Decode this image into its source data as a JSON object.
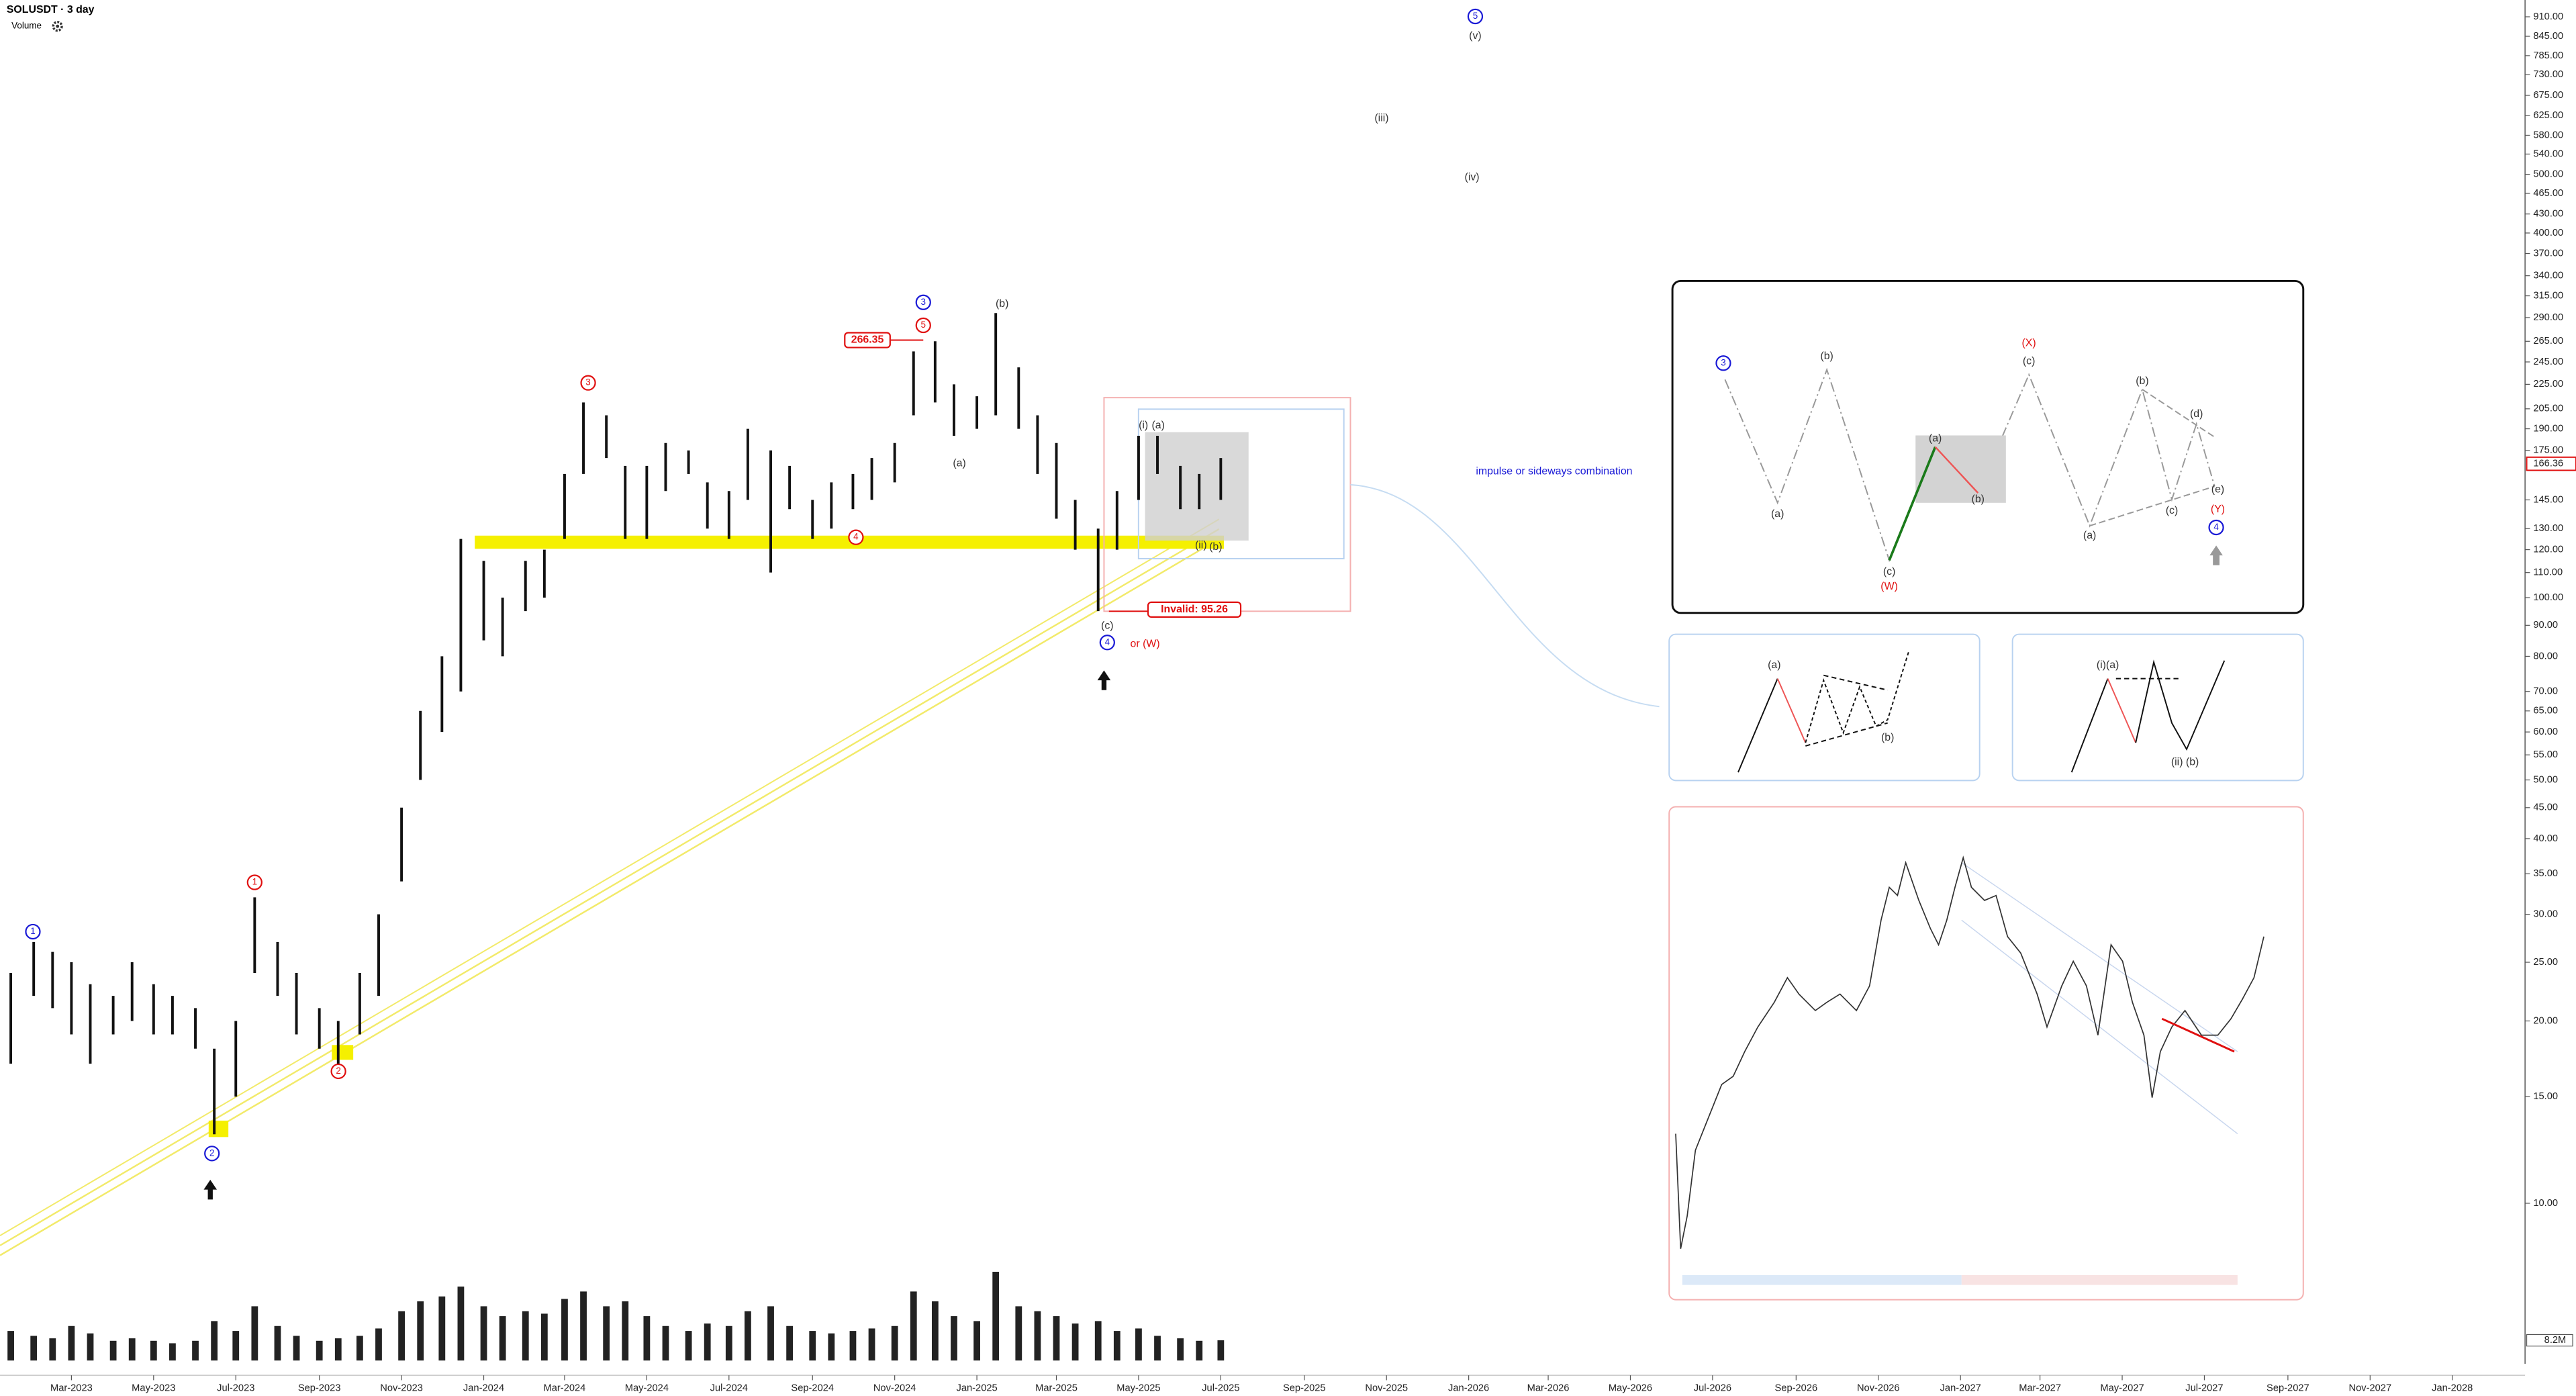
{
  "chart_data": {
    "type": "ohlc",
    "title": "SOLUSDT · 3 day",
    "volume_title": "Volume",
    "log_scale": true,
    "color": "#111111",
    "volume_color": "#222222",
    "x": [
      "2023-01-15",
      "2023-02-01",
      "2023-02-15",
      "2023-03-01",
      "2023-03-15",
      "2023-04-01",
      "2023-04-15",
      "2023-05-01",
      "2023-05-15",
      "2023-06-01",
      "2023-06-15",
      "2023-07-01",
      "2023-07-15",
      "2023-08-01",
      "2023-08-15",
      "2023-09-01",
      "2023-09-15",
      "2023-10-01",
      "2023-10-15",
      "2023-11-01",
      "2023-11-15",
      "2023-12-01",
      "2023-12-15",
      "2024-01-01",
      "2024-01-15",
      "2024-02-01",
      "2024-02-15",
      "2024-03-01",
      "2024-03-15",
      "2024-04-01",
      "2024-04-15",
      "2024-05-01",
      "2024-05-15",
      "2024-06-01",
      "2024-06-15",
      "2024-07-01",
      "2024-07-15",
      "2024-08-01",
      "2024-08-15",
      "2024-09-01",
      "2024-09-15",
      "2024-10-01",
      "2024-10-15",
      "2024-11-01",
      "2024-11-15",
      "2024-12-01",
      "2024-12-15",
      "2025-01-01",
      "2025-01-15",
      "2025-02-01",
      "2025-02-15",
      "2025-03-01",
      "2025-03-15",
      "2025-04-01",
      "2025-04-15",
      "2025-05-01",
      "2025-05-15",
      "2025-06-01",
      "2025-06-15",
      "2025-07-01"
    ],
    "high": [
      24,
      27,
      26,
      25,
      23,
      22,
      25,
      23,
      22,
      21,
      18,
      20,
      32,
      27,
      24,
      21,
      20,
      24,
      30,
      45,
      65,
      80,
      125,
      115,
      100,
      115,
      120,
      160,
      210,
      200,
      165,
      165,
      180,
      175,
      155,
      150,
      190,
      175,
      165,
      145,
      155,
      160,
      170,
      180,
      255,
      265,
      225,
      215,
      295,
      240,
      200,
      180,
      145,
      130,
      150,
      185,
      185,
      165,
      160,
      170
    ],
    "low": [
      17,
      22,
      21,
      19,
      17,
      19,
      20,
      19,
      19,
      18,
      13,
      15,
      24,
      22,
      19,
      18,
      17,
      19,
      22,
      34,
      50,
      60,
      70,
      85,
      80,
      95,
      100,
      125,
      160,
      170,
      125,
      125,
      150,
      160,
      130,
      125,
      145,
      110,
      140,
      125,
      130,
      140,
      145,
      155,
      200,
      210,
      185,
      190,
      200,
      190,
      160,
      135,
      120,
      95,
      120,
      145,
      160,
      140,
      140,
      145
    ],
    "volume": [
      12,
      10,
      9,
      14,
      11,
      8,
      9,
      8,
      7,
      8,
      16,
      12,
      22,
      14,
      10,
      8,
      9,
      10,
      13,
      20,
      24,
      26,
      30,
      22,
      18,
      20,
      19,
      25,
      28,
      22,
      24,
      18,
      14,
      12,
      15,
      14,
      20,
      22,
      14,
      12,
      11,
      12,
      13,
      14,
      28,
      24,
      18,
      16,
      36,
      22,
      20,
      18,
      15,
      16,
      12,
      13,
      10,
      9,
      8,
      8.2
    ],
    "vlim": [
      0,
      40
    ],
    "vticks": [
      {
        "value": 8.2,
        "label": "8.2M"
      }
    ],
    "last_price": {
      "value": 166.36,
      "label": "166.36"
    },
    "xlim": [
      "2023-01-07",
      "2028-02-24"
    ],
    "ylim": [
      5.5,
      970
    ],
    "xticks": [
      {
        "value": "2023-03-01",
        "label": "Mar-2023"
      },
      {
        "value": "2023-05-01",
        "label": "May-2023"
      },
      {
        "value": "2023-07-01",
        "label": "Jul-2023"
      },
      {
        "value": "2023-09-01",
        "label": "Sep-2023"
      },
      {
        "value": "2023-11-01",
        "label": "Nov-2023"
      },
      {
        "value": "2024-01-01",
        "label": "Jan-2024"
      },
      {
        "value": "2024-03-01",
        "label": "Mar-2024"
      },
      {
        "value": "2024-05-01",
        "label": "May-2024"
      },
      {
        "value": "2024-07-01",
        "label": "Jul-2024"
      },
      {
        "value": "2024-09-01",
        "label": "Sep-2024"
      },
      {
        "value": "2024-11-01",
        "label": "Nov-2024"
      },
      {
        "value": "2025-01-01",
        "label": "Jan-2025"
      },
      {
        "value": "2025-03-01",
        "label": "Mar-2025"
      },
      {
        "value": "2025-05-01",
        "label": "May-2025"
      },
      {
        "value": "2025-07-01",
        "label": "Jul-2025"
      },
      {
        "value": "2025-09-01",
        "label": "Sep-2025"
      },
      {
        "value": "2025-11-01",
        "label": "Nov-2025"
      },
      {
        "value": "2026-01-01",
        "label": "Jan-2026"
      },
      {
        "value": "2026-03-01",
        "label": "Mar-2026"
      },
      {
        "value": "2026-05-01",
        "label": "May-2026"
      },
      {
        "value": "2026-07-01",
        "label": "Jul-2026"
      },
      {
        "value": "2026-09-01",
        "label": "Sep-2026"
      },
      {
        "value": "2026-11-01",
        "label": "Nov-2026"
      },
      {
        "value": "2027-01-01",
        "label": "Jan-2027"
      },
      {
        "value": "2027-03-01",
        "label": "Mar-2027"
      },
      {
        "value": "2027-05-01",
        "label": "May-2027"
      },
      {
        "value": "2027-07-01",
        "label": "Jul-2027"
      },
      {
        "value": "2027-09-01",
        "label": "Sep-2027"
      },
      {
        "value": "2027-11-01",
        "label": "Nov-2027"
      },
      {
        "value": "2028-01-01",
        "label": "Jan-2028"
      }
    ],
    "yticks": [
      {
        "value": 910,
        "label": "910.00"
      },
      {
        "value": 845,
        "label": "845.00"
      },
      {
        "value": 785,
        "label": "785.00"
      },
      {
        "value": 730,
        "label": "730.00"
      },
      {
        "value": 675,
        "label": "675.00"
      },
      {
        "value": 625,
        "label": "625.00"
      },
      {
        "value": 580,
        "label": "580.00"
      },
      {
        "value": 540,
        "label": "540.00"
      },
      {
        "value": 500,
        "label": "500.00"
      },
      {
        "value": 465,
        "label": "465.00"
      },
      {
        "value": 430,
        "label": "430.00"
      },
      {
        "value": 400,
        "label": "400.00"
      },
      {
        "value": 370,
        "label": "370.00"
      },
      {
        "value": 340,
        "label": "340.00"
      },
      {
        "value": 315,
        "label": "315.00"
      },
      {
        "value": 290,
        "label": "290.00"
      },
      {
        "value": 265,
        "label": "265.00"
      },
      {
        "value": 245,
        "label": "245.00"
      },
      {
        "value": 225,
        "label": "225.00"
      },
      {
        "value": 205,
        "label": "205.00"
      },
      {
        "value": 190,
        "label": "190.00"
      },
      {
        "value": 175,
        "label": "175.00"
      },
      {
        "value": 145,
        "label": "145.00"
      },
      {
        "value": 130,
        "label": "130.00"
      },
      {
        "value": 120,
        "label": "120.00"
      },
      {
        "value": 110,
        "label": "110.00"
      },
      {
        "value": 100,
        "label": "100.00"
      },
      {
        "value": 90,
        "label": "90.00"
      },
      {
        "value": 80,
        "label": "80.00"
      },
      {
        "value": 70,
        "label": "70.00"
      },
      {
        "value": 65,
        "label": "65.00"
      },
      {
        "value": 60,
        "label": "60.00"
      },
      {
        "value": 55,
        "label": "55.00"
      },
      {
        "value": 50,
        "label": "50.00"
      },
      {
        "value": 45,
        "label": "45.00"
      },
      {
        "value": 40,
        "label": "40.00"
      },
      {
        "value": 35,
        "label": "35.00"
      },
      {
        "value": 30,
        "label": "30.00"
      },
      {
        "value": 25,
        "label": "25.00"
      },
      {
        "value": 20,
        "label": "20.00"
      },
      {
        "value": 15,
        "label": "15.00"
      },
      {
        "value": 10,
        "label": "10.00"
      }
    ],
    "annotations": [
      {
        "text": "1",
        "color": "#1a1ad6",
        "circled": true
      },
      {
        "text": "1",
        "color": "#e01010",
        "circled": true
      },
      {
        "text": "2",
        "color": "#1a1ad6",
        "circled": true
      },
      {
        "text": "2",
        "color": "#e01010",
        "circled": true
      },
      {
        "text": "3",
        "color": "#e01010",
        "circled": true
      },
      {
        "text": "4",
        "color": "#e01010",
        "circled": true
      },
      {
        "text": "3",
        "color": "#1a1ad6",
        "circled": true
      },
      {
        "text": "5",
        "color": "#e01010",
        "circled": true
      },
      {
        "text": "(b)",
        "color": "#333333"
      },
      {
        "text": "(a)",
        "color": "#333333"
      },
      {
        "text": "266.35",
        "color": "#e01010",
        "boxed": true
      },
      {
        "text": "(i)",
        "color": "#333333"
      },
      {
        "text": "(a)",
        "color": "#333333"
      },
      {
        "text": "(ii)",
        "color": "#333333"
      },
      {
        "text": "(b)",
        "color": "#333333"
      },
      {
        "text": "(c)",
        "color": "#333333"
      },
      {
        "text": "4",
        "color": "#1a1ad6",
        "circled": true
      },
      {
        "text": "or (W)",
        "color": "#e01010"
      },
      {
        "text": "Invalid: 95.26",
        "color": "#e01010",
        "boxed": true
      },
      {
        "text": "5",
        "color": "#1a1ad6",
        "circled": true
      },
      {
        "text": "(v)",
        "color": "#333333"
      },
      {
        "text": "(iii)",
        "color": "#333333"
      },
      {
        "text": "(iv)",
        "color": "#333333"
      },
      {
        "text": "impulse or sideways combination",
        "color": "#1a1ad6"
      },
      {
        "text": "3",
        "color": "#1a1ad6",
        "circled": true
      },
      {
        "text": "(b)",
        "color": "#333333"
      },
      {
        "text": "(a)",
        "color": "#333333"
      },
      {
        "text": "(c)",
        "color": "#333333"
      },
      {
        "text": "(W)",
        "color": "#e01010"
      },
      {
        "text": "(a)",
        "color": "#333333"
      },
      {
        "text": "(b)",
        "color": "#333333"
      },
      {
        "text": "(X)",
        "color": "#e01010"
      },
      {
        "text": "(c)",
        "color": "#333333"
      },
      {
        "text": "(b)",
        "color": "#333333"
      },
      {
        "text": "(a)",
        "color": "#333333"
      },
      {
        "text": "(d)",
        "color": "#333333"
      },
      {
        "text": "(c)",
        "color": "#333333"
      },
      {
        "text": "(e)",
        "color": "#333333"
      },
      {
        "text": "(Y)",
        "color": "#e01010"
      },
      {
        "text": "4",
        "color": "#1a1ad6",
        "circled": true
      },
      {
        "text": "(a)",
        "color": "#333333"
      },
      {
        "text": "(b)",
        "color": "#333333"
      },
      {
        "text": "(i)(a)",
        "color": "#333333"
      },
      {
        "text": "(ii) (b)",
        "color": "#333333"
      }
    ]
  }
}
